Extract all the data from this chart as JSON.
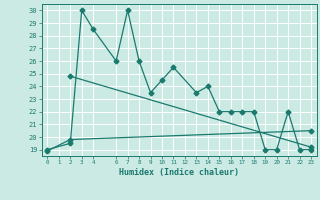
{
  "xlabel": "Humidex (Indice chaleur)",
  "xlim": [
    -0.5,
    23.5
  ],
  "ylim": [
    18.5,
    30.5
  ],
  "yticks": [
    19,
    20,
    21,
    22,
    23,
    24,
    25,
    26,
    27,
    28,
    29,
    30
  ],
  "xticks": [
    0,
    1,
    2,
    3,
    4,
    6,
    7,
    8,
    9,
    10,
    11,
    12,
    13,
    14,
    15,
    16,
    17,
    18,
    19,
    20,
    21,
    22,
    23
  ],
  "bg_color": "#cceae4",
  "line_color": "#1a7a6e",
  "grid_color": "#b0ddd6",
  "line1_x": [
    0,
    2,
    3,
    4,
    6,
    7,
    8,
    9,
    10,
    11,
    13,
    14,
    15,
    16,
    17,
    18,
    19,
    20,
    21,
    22,
    23
  ],
  "line1_y": [
    19.0,
    19.5,
    30.0,
    28.5,
    26.0,
    30.0,
    26.0,
    23.5,
    24.5,
    25.5,
    23.5,
    24.0,
    22.0,
    22.0,
    22.0,
    22.0,
    19.0,
    19.0,
    22.0,
    19.0,
    19.0
  ],
  "line2_x": [
    2,
    23
  ],
  "line2_y": [
    24.8,
    19.2
  ],
  "line3_x": [
    0,
    2,
    23
  ],
  "line3_y": [
    18.9,
    19.8,
    20.5
  ],
  "markersize": 2.5,
  "linewidth": 0.9
}
